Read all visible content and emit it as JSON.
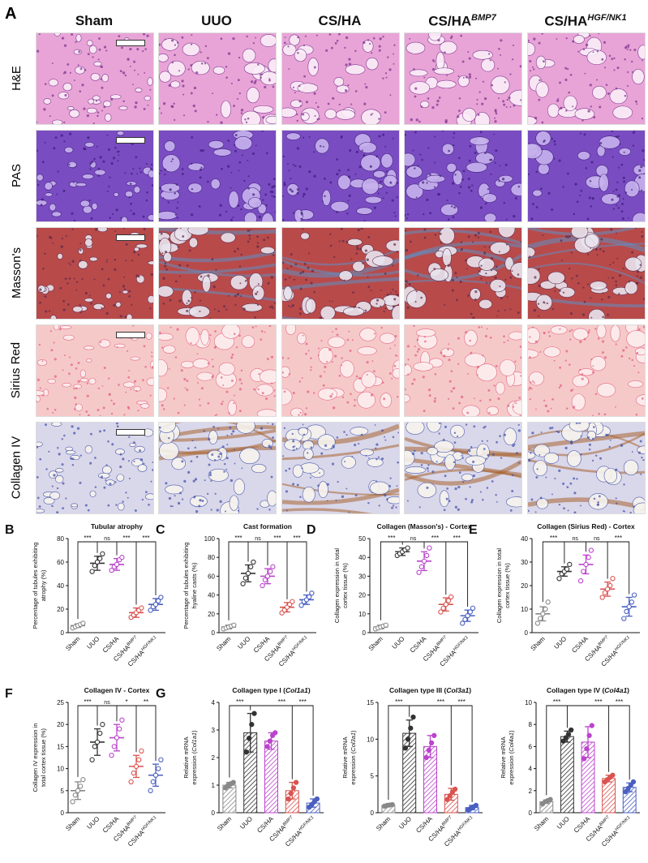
{
  "histology": {
    "panel_letter": "A",
    "columns": [
      {
        "label": "Sham",
        "sup": ""
      },
      {
        "label": "UUO",
        "sup": ""
      },
      {
        "label": "CS/HA",
        "sup": ""
      },
      {
        "label": "CS/HA",
        "sup": "BMP7"
      },
      {
        "label": "CS/HA",
        "sup": "HGF/NK1"
      }
    ],
    "rows": [
      {
        "label": "H&E",
        "stain": "he"
      },
      {
        "label": "PAS",
        "stain": "pas"
      },
      {
        "label": "Masson's",
        "stain": "masson"
      },
      {
        "label": "Sirius Red",
        "stain": "sirius"
      },
      {
        "label": "Collagen IV",
        "stain": "col4"
      }
    ],
    "stain_colors": {
      "he": {
        "bg": "#e8a4d6",
        "lumen": "#fbeef8",
        "cell": "#7a2f8f"
      },
      "pas": {
        "bg": "#7a4cc2",
        "lumen": "#c7b3ee",
        "cell": "#3d1d78"
      },
      "masson": {
        "bg": "#b94a4a",
        "lumen": "#e9e4ee",
        "cell": "#5a2a48",
        "fiber": "#5e8fc2"
      },
      "sirius": {
        "bg": "#f6c9c9",
        "lumen": "#fdeeee",
        "cell": "#e0607e"
      },
      "col4": {
        "bg": "#d9d7ea",
        "lumen": "#f6f3ee",
        "cell": "#3f4fa8",
        "fiber": "#a8652f"
      }
    }
  },
  "chart_data": [
    {
      "panel": "B",
      "type": "scatter",
      "title": "Tubular atrophy",
      "ylabel": "Percentage of tubules exhibiting atrophy (%)",
      "categories": [
        "Sham",
        "UUO",
        "CS/HA",
        "CS/HA BMP7",
        "CS/HA HGF/NK1"
      ],
      "ylim": [
        0,
        80
      ],
      "yticks": [
        0,
        20,
        40,
        60,
        80
      ],
      "means": [
        6,
        59,
        58,
        17,
        24
      ],
      "sds": [
        1.5,
        6,
        5,
        4,
        5
      ],
      "points": [
        [
          4,
          5,
          6,
          7,
          8
        ],
        [
          52,
          57,
          60,
          63,
          67
        ],
        [
          53,
          56,
          58,
          62,
          64
        ],
        [
          13,
          15,
          17,
          19,
          21
        ],
        [
          19,
          22,
          24,
          27,
          30
        ]
      ],
      "colors": [
        "#888888",
        "#333333",
        "#bb44cc",
        "#d9534f",
        "#4a5fc1"
      ],
      "comparisons": [
        {
          "from": 0,
          "to": 1,
          "label": "***"
        },
        {
          "from": 1,
          "to": 2,
          "label": "ns"
        },
        {
          "from": 1,
          "to": 3,
          "label": "***"
        },
        {
          "from": 1,
          "to": 4,
          "label": "***"
        }
      ]
    },
    {
      "panel": "C",
      "type": "scatter",
      "title": "Cast formation",
      "ylabel": "Percentage of tubules exhibiting hyaline casts (%)",
      "categories": [
        "Sham",
        "UUO",
        "CS/HA",
        "CS/HA BMP7",
        "CS/HA HGF/NK1"
      ],
      "ylim": [
        0,
        100
      ],
      "yticks": [
        0,
        20,
        40,
        60,
        80,
        100
      ],
      "means": [
        6,
        63,
        60,
        27,
        35
      ],
      "sds": [
        2,
        9,
        8,
        5,
        5
      ],
      "points": [
        [
          4,
          5,
          6,
          7,
          8
        ],
        [
          52,
          58,
          63,
          70,
          75
        ],
        [
          50,
          56,
          60,
          65,
          70
        ],
        [
          21,
          24,
          27,
          30,
          33
        ],
        [
          29,
          33,
          35,
          38,
          42
        ]
      ],
      "colors": [
        "#888888",
        "#333333",
        "#bb44cc",
        "#d9534f",
        "#4a5fc1"
      ],
      "comparisons": [
        {
          "from": 0,
          "to": 1,
          "label": "***"
        },
        {
          "from": 1,
          "to": 2,
          "label": "ns"
        },
        {
          "from": 1,
          "to": 3,
          "label": "***"
        },
        {
          "from": 1,
          "to": 4,
          "label": "***"
        }
      ]
    },
    {
      "panel": "D",
      "type": "scatter",
      "title": "Collagen (Masson's) - Cortex",
      "ylabel": "Collagen expression in total cortex tissue (%)",
      "categories": [
        "Sham",
        "UUO",
        "CS/HA",
        "CS/HA BMP7",
        "CS/HA HGF/NK1"
      ],
      "ylim": [
        0,
        50
      ],
      "yticks": [
        0,
        10,
        20,
        30,
        40,
        50
      ],
      "means": [
        3,
        43,
        38,
        15,
        9
      ],
      "sds": [
        1,
        2,
        5,
        3.5,
        3
      ],
      "points": [
        [
          2,
          2.5,
          3,
          3.5,
          4
        ],
        [
          41,
          42,
          43,
          44,
          45
        ],
        [
          32,
          35,
          38,
          41,
          45
        ],
        [
          11,
          13,
          15,
          17,
          19
        ],
        [
          5,
          7,
          9,
          11,
          13
        ]
      ],
      "colors": [
        "#888888",
        "#333333",
        "#bb44cc",
        "#d9534f",
        "#4a5fc1"
      ],
      "comparisons": [
        {
          "from": 0,
          "to": 1,
          "label": "***"
        },
        {
          "from": 1,
          "to": 2,
          "label": "ns"
        },
        {
          "from": 1,
          "to": 3,
          "label": "***"
        },
        {
          "from": 1,
          "to": 4,
          "label": "***"
        }
      ]
    },
    {
      "panel": "E",
      "type": "scatter",
      "title": "Collagen (Sirius Red) - Cortex",
      "ylabel": "Collagen expression in total cortex tissue (%)",
      "categories": [
        "Sham",
        "UUO",
        "CS/HA",
        "CS/HA BMP7",
        "CS/HA HGF/NK1"
      ],
      "ylim": [
        0,
        40
      ],
      "yticks": [
        0,
        10,
        20,
        30,
        40
      ],
      "means": [
        8,
        26,
        29,
        18.5,
        11
      ],
      "sds": [
        3,
        2,
        4,
        3,
        4
      ],
      "points": [
        [
          4,
          6,
          8,
          10,
          13
        ],
        [
          23,
          25,
          26,
          27,
          29
        ],
        [
          22,
          26,
          29,
          32,
          35
        ],
        [
          15,
          17,
          18.5,
          20,
          23
        ],
        [
          6,
          9,
          11,
          13,
          16
        ]
      ],
      "colors": [
        "#888888",
        "#333333",
        "#bb44cc",
        "#d9534f",
        "#4a5fc1"
      ],
      "comparisons": [
        {
          "from": 0,
          "to": 1,
          "label": "***"
        },
        {
          "from": 1,
          "to": 2,
          "label": "ns"
        },
        {
          "from": 1,
          "to": 3,
          "label": "ns"
        },
        {
          "from": 1,
          "to": 4,
          "label": "***"
        }
      ]
    },
    {
      "panel": "F",
      "type": "scatter",
      "title": "Collagen IV - Cortex",
      "ylabel": "Collagen IV expression in total cortex tissue (%)",
      "categories": [
        "Sham",
        "UUO",
        "CS/HA",
        "CS/HA BMP7",
        "CS/HA HGF/NK1"
      ],
      "ylim": [
        0,
        25
      ],
      "yticks": [
        0,
        5,
        10,
        15,
        20,
        25
      ],
      "means": [
        5,
        16,
        17,
        10.5,
        8.5
      ],
      "sds": [
        2,
        3,
        3,
        2.5,
        2.5
      ],
      "points": [
        [
          2.5,
          4,
          5,
          6,
          7.5
        ],
        [
          12,
          15,
          16,
          18,
          20
        ],
        [
          13,
          15,
          17,
          19,
          21
        ],
        [
          7,
          9,
          10.5,
          12,
          14
        ],
        [
          5,
          7,
          8.5,
          10,
          12
        ]
      ],
      "colors": [
        "#888888",
        "#333333",
        "#bb44cc",
        "#d9534f",
        "#4a5fc1"
      ],
      "comparisons": [
        {
          "from": 0,
          "to": 1,
          "label": "***"
        },
        {
          "from": 1,
          "to": 2,
          "label": "ns"
        },
        {
          "from": 1,
          "to": 3,
          "label": "*"
        },
        {
          "from": 1,
          "to": 4,
          "label": "**"
        }
      ]
    },
    {
      "panel": "G",
      "type": "bar",
      "title": "Collagen type I (",
      "gene": "Col1a1",
      "ylabel": "Relative mRNA expression (",
      "ylabel_gene": "Col1a1",
      "categories": [
        "Sham",
        "UUO",
        "CS/HA",
        "CS/HA BMP7",
        "CS/HA HGF/NK1"
      ],
      "ylim": [
        0,
        4
      ],
      "yticks": [
        0,
        1,
        2,
        3,
        4
      ],
      "values": [
        1.0,
        2.9,
        2.6,
        0.8,
        0.35
      ],
      "sds": [
        0.1,
        0.7,
        0.3,
        0.3,
        0.15
      ],
      "points": [
        [
          0.9,
          1.0,
          1.05,
          1.1
        ],
        [
          2.2,
          2.7,
          3.2,
          3.6
        ],
        [
          2.4,
          2.6,
          2.8,
          2.9
        ],
        [
          0.5,
          0.7,
          0.9,
          1.1
        ],
        [
          0.2,
          0.3,
          0.4,
          0.5
        ]
      ],
      "colors": [
        "#888888",
        "#333333",
        "#bb44cc",
        "#d9534f",
        "#4a5fc1"
      ],
      "comparisons": [
        {
          "from": 0,
          "to": 1,
          "label": "***"
        },
        {
          "from": 1,
          "to": 3,
          "label": "***"
        },
        {
          "from": 1,
          "to": 4,
          "label": "***"
        }
      ]
    },
    {
      "panel": "",
      "type": "bar",
      "title": "Collagen type III (",
      "gene": "Col3a1",
      "ylabel": "Relative mRNA expression (",
      "ylabel_gene": "Col3a1",
      "categories": [
        "Sham",
        "UUO",
        "CS/HA",
        "CS/HA BMP7",
        "CS/HA HGF/NK1"
      ],
      "ylim": [
        0,
        15
      ],
      "yticks": [
        0,
        5,
        10,
        15
      ],
      "values": [
        1.0,
        10.8,
        9.0,
        2.5,
        0.7
      ],
      "sds": [
        0.1,
        1.8,
        1.5,
        0.8,
        0.3
      ],
      "points": [
        [
          0.9,
          1.0,
          1.05,
          1.1
        ],
        [
          8.8,
          10.0,
          11.5,
          13.0
        ],
        [
          7.5,
          8.5,
          9.5,
          10.5
        ],
        [
          1.8,
          2.3,
          2.8,
          3.2
        ],
        [
          0.4,
          0.6,
          0.8,
          1.0
        ]
      ],
      "colors": [
        "#888888",
        "#333333",
        "#bb44cc",
        "#d9534f",
        "#4a5fc1"
      ],
      "comparisons": [
        {
          "from": 0,
          "to": 1,
          "label": "***"
        },
        {
          "from": 1,
          "to": 3,
          "label": "***"
        },
        {
          "from": 1,
          "to": 4,
          "label": "***"
        }
      ]
    },
    {
      "panel": "",
      "type": "bar",
      "title": "Collagen type IV (",
      "gene": "Col4a1",
      "ylabel": "Relative mRNA expression (",
      "ylabel_gene": "Col4a1",
      "categories": [
        "Sham",
        "UUO",
        "CS/HA",
        "CS/HA BMP7",
        "CS/HA HGF/NK1"
      ],
      "ylim": [
        0,
        10
      ],
      "yticks": [
        0,
        2,
        4,
        6,
        8,
        10
      ],
      "values": [
        1.0,
        6.9,
        6.4,
        3.1,
        2.3
      ],
      "sds": [
        0.15,
        0.5,
        1.4,
        0.3,
        0.4
      ],
      "points": [
        [
          0.8,
          1.0,
          1.1,
          1.2
        ],
        [
          6.5,
          6.8,
          7.1,
          7.5
        ],
        [
          4.9,
          5.8,
          7.0,
          7.9
        ],
        [
          2.8,
          3.0,
          3.2,
          3.4
        ],
        [
          1.9,
          2.2,
          2.5,
          2.8
        ]
      ],
      "colors": [
        "#888888",
        "#333333",
        "#bb44cc",
        "#d9534f",
        "#4a5fc1"
      ],
      "comparisons": [
        {
          "from": 0,
          "to": 1,
          "label": "***"
        },
        {
          "from": 1,
          "to": 3,
          "label": "***"
        },
        {
          "from": 1,
          "to": 4,
          "label": "***"
        }
      ]
    }
  ]
}
